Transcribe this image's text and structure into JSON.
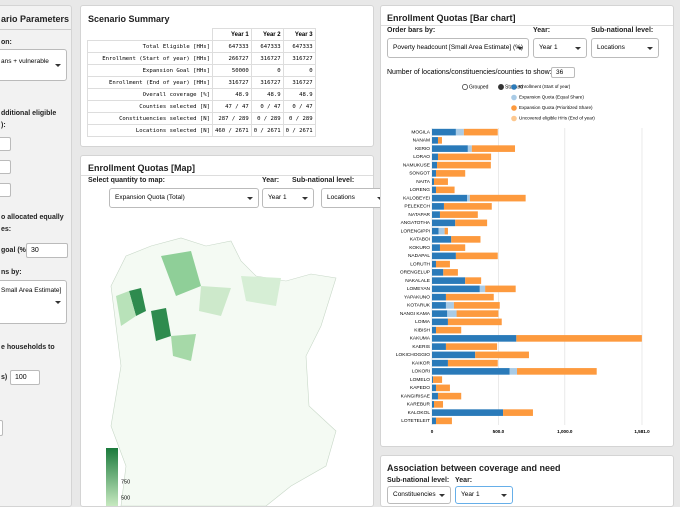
{
  "sidebar": {
    "title": "ario Parameters",
    "lines": [
      "on:",
      "ans + vulnerable",
      "dditional eligible",
      "):",
      "o allocated equally",
      "es:",
      "goal (%):",
      "30",
      "ns by:",
      "Small Area Estimate]",
      "e households to",
      "s)",
      "100"
    ]
  },
  "summary": {
    "title": "Scenario Summary",
    "columns": [
      "Year 1",
      "Year 2",
      "Year 3"
    ],
    "rows": [
      [
        "Total Eligible [HHs]",
        "647333",
        "647333",
        "647333"
      ],
      [
        "Enrollment (Start of year) [HHs]",
        "266727",
        "316727",
        "316727"
      ],
      [
        "Expansion Goal [HHs]",
        "50000",
        "0",
        "0"
      ],
      [
        "Enrollment (End of year) [HHs]",
        "316727",
        "316727",
        "316727"
      ],
      [
        "Overall coverage [%]",
        "48.9",
        "48.9",
        "48.9"
      ],
      [
        "Counties selected [N]",
        "47 / 47",
        "0 / 47",
        "0 / 47"
      ],
      [
        "Constituencies selected [N]",
        "287 / 289",
        "0 / 289",
        "0 / 289"
      ],
      [
        "Locations selected [N]",
        "460 / 2671",
        "0 / 2671",
        "0 / 2671"
      ]
    ]
  },
  "map": {
    "title": "Enrollment Quotas [Map]",
    "quantity_label": "Select quantity to map:",
    "quantity": "Expansion Quota (Total)",
    "year_label": "Year:",
    "year": "Year 1",
    "level_label": "Sub-national level:",
    "level": "Locations",
    "legend_labels": [
      "750",
      "500"
    ]
  },
  "bar_panel": {
    "title": "Enrollment Quotas [Bar chart]",
    "order_label": "Order bars by:",
    "order": "Poverty headcount [Small Area Estimate] (%)",
    "year_label": "Year:",
    "year": "Year 1",
    "level_label": "Sub-national level:",
    "level": "Locations",
    "count_label": "Number of locations/constituencies/counties to show:",
    "count": "36",
    "modes": [
      "Grouped",
      "Stacked"
    ],
    "chart": {
      "type": "bar",
      "orientation": "horizontal",
      "stacked": true,
      "grid": true,
      "categories": [
        "MOGILA",
        "NANAM",
        "KERIO",
        "LORAO",
        "NAMUKUSE",
        "SONGOT",
        "NAITA",
        "LORENG",
        "KALOBEYEI",
        "PELEKECH",
        "NATAPAR",
        "ANGATOTHA",
        "LORENGIPPI",
        "KATABOI",
        "KOKURO",
        "NADAPAL",
        "LORUTH",
        "ORENGELUP",
        "NAKALALE",
        "LOMEYAN",
        "YAPAKUNO",
        "KOTARUK",
        "NANGI KAMA",
        "LOIMA",
        "KIBISH",
        "KAKUMA",
        "KAERIS",
        "LOKICHOGGIO",
        "KAIKOR",
        "LOKORI",
        "LOMELO",
        "KAPEDO",
        "KANGIRISAE",
        "KAREBUR",
        "KALOKOL",
        "LOTETELEIT"
      ],
      "series": [
        {
          "name": "Enrollment (Start of year)",
          "color": "#2a7ab9",
          "values": [
            180,
            45,
            270,
            45,
            38,
            30,
            15,
            30,
            265,
            90,
            60,
            175,
            50,
            145,
            60,
            180,
            30,
            85,
            250,
            360,
            105,
            105,
            115,
            120,
            30,
            635,
            105,
            325,
            120,
            585,
            8,
            30,
            45,
            15,
            535,
            30
          ]
        },
        {
          "name": "Expansion Quota (Equal Share)",
          "color": "#a9cbe6",
          "values": [
            60,
            0,
            30,
            0,
            0,
            0,
            0,
            0,
            20,
            0,
            0,
            0,
            45,
            0,
            0,
            0,
            0,
            0,
            0,
            40,
            0,
            60,
            70,
            0,
            0,
            0,
            0,
            0,
            0,
            55,
            0,
            0,
            0,
            0,
            0,
            0
          ]
        },
        {
          "name": "Expansion Quota (Prioritized Share)",
          "color": "#fd9a3e",
          "values": [
            255,
            30,
            325,
            400,
            405,
            220,
            105,
            140,
            420,
            360,
            285,
            240,
            25,
            220,
            190,
            315,
            105,
            110,
            120,
            230,
            360,
            345,
            315,
            405,
            190,
            945,
            385,
            405,
            375,
            600,
            68,
            105,
            175,
            68,
            225,
            120
          ]
        },
        {
          "name": "Uncovered eligible HHs (End of year)",
          "color": "#fdc88f",
          "values": [
            0,
            0,
            0,
            0,
            0,
            0,
            0,
            0,
            0,
            0,
            0,
            0,
            0,
            0,
            0,
            0,
            0,
            0,
            0,
            0,
            0,
            0,
            0,
            0,
            0,
            0,
            0,
            0,
            0,
            0,
            0,
            0,
            0,
            0,
            0,
            0
          ]
        }
      ],
      "xlim": [
        0,
        1581
      ],
      "xticks": [
        0,
        {
          "value": 500,
          "label": "500.0"
        },
        {
          "value": 1000,
          "label": "1,000.0"
        },
        {
          "value": 1581,
          "label": "1,581.0"
        }
      ]
    }
  },
  "assoc": {
    "title": "Association between coverage and need",
    "level_label": "Sub-national level:",
    "level": "Constituencies",
    "year_label": "Year:",
    "year": "Year 1"
  }
}
